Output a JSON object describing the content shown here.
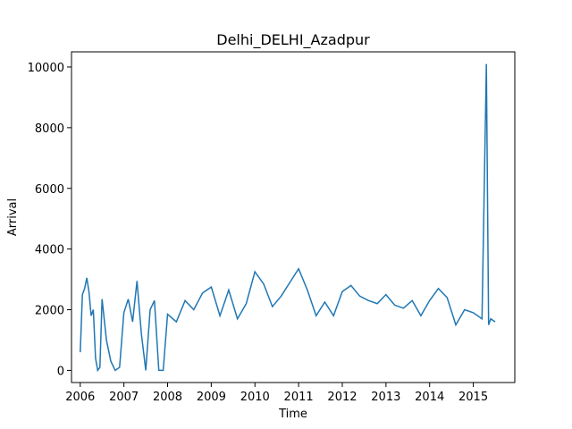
{
  "chart_data": {
    "type": "line",
    "title": "Delhi_DELHI_Azadpur",
    "xlabel": "Time",
    "ylabel": "Arrival",
    "xlim": [
      2005.8,
      2015.95
    ],
    "ylim": [
      -400,
      10500
    ],
    "grid": false,
    "legend": "none",
    "color": "#1f77b4",
    "x_ticks": [
      2006,
      2007,
      2008,
      2009,
      2010,
      2011,
      2012,
      2013,
      2014,
      2015
    ],
    "x_tick_labels": [
      "2006",
      "2007",
      "2008",
      "2009",
      "2010",
      "2011",
      "2012",
      "2013",
      "2014",
      "2015"
    ],
    "y_ticks": [
      0,
      2000,
      4000,
      6000,
      8000,
      10000
    ],
    "y_tick_labels": [
      "0",
      "2000",
      "4000",
      "6000",
      "8000",
      "10000"
    ],
    "series": [
      {
        "x": [
          2006.0,
          2006.05,
          2006.1,
          2006.15,
          2006.2,
          2006.25,
          2006.3,
          2006.35,
          2006.4,
          2006.45,
          2006.5,
          2006.6,
          2006.7,
          2006.8,
          2006.9,
          2007.0,
          2007.1,
          2007.2,
          2007.3,
          2007.4,
          2007.5,
          2007.6,
          2007.7,
          2007.8,
          2007.9,
          2008.0,
          2008.2,
          2008.4,
          2008.6,
          2008.8,
          2009.0,
          2009.2,
          2009.4,
          2009.6,
          2009.8,
          2010.0,
          2010.2,
          2010.4,
          2010.6,
          2010.8,
          2011.0,
          2011.2,
          2011.4,
          2011.6,
          2011.8,
          2012.0,
          2012.2,
          2012.4,
          2012.6,
          2012.8,
          2013.0,
          2013.2,
          2013.4,
          2013.6,
          2013.8,
          2014.0,
          2014.2,
          2014.4,
          2014.6,
          2014.8,
          2015.0,
          2015.2,
          2015.3,
          2015.35,
          2015.4,
          2015.5
        ],
        "y": [
          600,
          2500,
          2700,
          3050,
          2600,
          1800,
          2000,
          400,
          0,
          100,
          2350,
          1000,
          300,
          0,
          100,
          1900,
          2350,
          1600,
          2950,
          1200,
          0,
          2000,
          2300,
          0,
          0,
          1850,
          1600,
          2300,
          2000,
          2550,
          2750,
          1800,
          2650,
          1700,
          2200,
          3250,
          2850,
          2100,
          2450,
          2900,
          3350,
          2650,
          1800,
          2250,
          1800,
          2600,
          2800,
          2450,
          2300,
          2200,
          2500,
          2150,
          2050,
          2300,
          1800,
          2300,
          2700,
          2400,
          1500,
          2000,
          1900,
          1700,
          10100,
          1500,
          1700,
          1600
        ]
      }
    ]
  }
}
